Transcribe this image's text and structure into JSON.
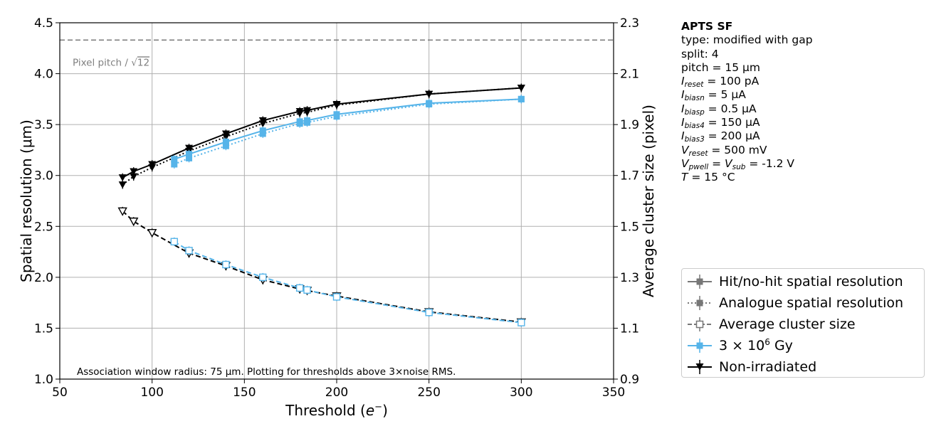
{
  "chart_data": {
    "type": "line",
    "title": "",
    "xlabel": "Threshold (e⁻)",
    "ylabel_left": "Spatial resolution (μm)",
    "ylabel_right": "Average cluster size (pixel)",
    "xlim": [
      50,
      350
    ],
    "ylim_left": [
      1.0,
      4.5
    ],
    "ylim_right": [
      0.9,
      2.3
    ],
    "xticks": [
      "50",
      "100",
      "150",
      "200",
      "250",
      "300",
      "350"
    ],
    "yticks_left": [
      "1.0",
      "1.5",
      "2.0",
      "2.5",
      "3.0",
      "3.5",
      "4.0",
      "4.5"
    ],
    "yticks_right": [
      "0.9",
      "1.1",
      "1.3",
      "1.5",
      "1.7",
      "1.9",
      "2.1",
      "2.3"
    ],
    "grid": true,
    "reference_line": {
      "label_prefix": "Pixel pitch / ",
      "label_root": "12",
      "value": 4.33
    },
    "footnote": "Association window radius: 75 µm. Plotting for thresholds above 3×noise RMS.",
    "series": [
      {
        "name": "Non-irradiated",
        "metric": "Hit/no-hit spatial resolution",
        "axis": "left",
        "color": "#000000",
        "marker": "triangle-down",
        "style": "solid",
        "x": [
          84,
          90,
          100,
          120,
          140,
          160,
          180,
          184,
          200,
          250,
          300
        ],
        "y": [
          2.98,
          3.04,
          3.11,
          3.27,
          3.41,
          3.54,
          3.63,
          3.64,
          3.7,
          3.8,
          3.86
        ]
      },
      {
        "name": "Non-irradiated",
        "metric": "Analogue spatial resolution",
        "axis": "left",
        "color": "#000000",
        "marker": "triangle-down",
        "style": "dotted",
        "x": [
          84,
          90,
          100,
          120,
          140,
          160,
          180,
          184,
          200,
          250,
          300
        ],
        "y": [
          2.91,
          2.99,
          3.08,
          3.24,
          3.38,
          3.51,
          3.61,
          3.62,
          3.69,
          3.8,
          3.86
        ]
      },
      {
        "name": "3 × 10⁶ Gy",
        "metric": "Hit/no-hit spatial resolution",
        "axis": "left",
        "color": "#56b4e9",
        "marker": "square",
        "style": "solid",
        "x": [
          112,
          120,
          140,
          160,
          180,
          184,
          200,
          250,
          300
        ],
        "y": [
          3.16,
          3.21,
          3.33,
          3.44,
          3.53,
          3.54,
          3.6,
          3.71,
          3.75
        ]
      },
      {
        "name": "3 × 10⁶ Gy",
        "metric": "Analogue spatial resolution",
        "axis": "left",
        "color": "#56b4e9",
        "marker": "square",
        "style": "dotted",
        "x": [
          112,
          120,
          140,
          160,
          180,
          184,
          200,
          250,
          300
        ],
        "y": [
          3.11,
          3.17,
          3.29,
          3.41,
          3.51,
          3.52,
          3.58,
          3.7,
          3.75
        ]
      },
      {
        "name": "Non-irradiated",
        "metric": "Average cluster size",
        "axis": "right",
        "color": "#000000",
        "marker": "triangle-down-open",
        "style": "dashed",
        "x": [
          84,
          90,
          100,
          120,
          140,
          160,
          180,
          184,
          200,
          250,
          300
        ],
        "y": [
          1.56,
          1.52,
          1.475,
          1.395,
          1.345,
          1.29,
          1.254,
          1.248,
          1.226,
          1.164,
          1.124
        ]
      },
      {
        "name": "3 × 10⁶ Gy",
        "metric": "Average cluster size",
        "axis": "right",
        "color": "#56b4e9",
        "marker": "square-open",
        "style": "dashed",
        "x": [
          112,
          120,
          140,
          160,
          180,
          184,
          200,
          250,
          300
        ],
        "y": [
          1.44,
          1.405,
          1.35,
          1.3,
          1.258,
          1.25,
          1.223,
          1.162,
          1.122
        ]
      }
    ]
  },
  "info": {
    "title": "APTS SF",
    "type_line": "type: modified with gap",
    "split_line": "split:  4",
    "pitch_line": "pitch = 15 µm",
    "params": [
      {
        "sym": "I",
        "sub": "reset",
        "eq": " = 100 pA"
      },
      {
        "sym": "I",
        "sub": "biasn",
        "eq": " = 5 µA"
      },
      {
        "sym": "I",
        "sub": "biasp",
        "eq": " = 0.5 µA"
      },
      {
        "sym": "I",
        "sub": "bias4",
        "eq": " = 150 µA"
      },
      {
        "sym": "I",
        "sub": "bias3",
        "eq": " = 200 µA"
      },
      {
        "sym": "V",
        "sub": "reset",
        "eq": " = 500 mV"
      }
    ],
    "vpwell": {
      "sym1": "V",
      "sub1": "pwell",
      "mid": " = ",
      "sym2": "V",
      "sub2": "sub",
      "eq": " = -1.2 V"
    },
    "temp": {
      "sym": "T",
      "eq": " = 15 °C"
    }
  },
  "legend": {
    "hitnohit": "Hit/no-hit spatial resolution",
    "analogue": "Analogue spatial resolution",
    "clustersize": "Average cluster size",
    "irradiated_base": "3 × 10",
    "irradiated_exp": "6",
    "irradiated_unit": " Gy",
    "nonirradiated": "Non-irradiated"
  }
}
